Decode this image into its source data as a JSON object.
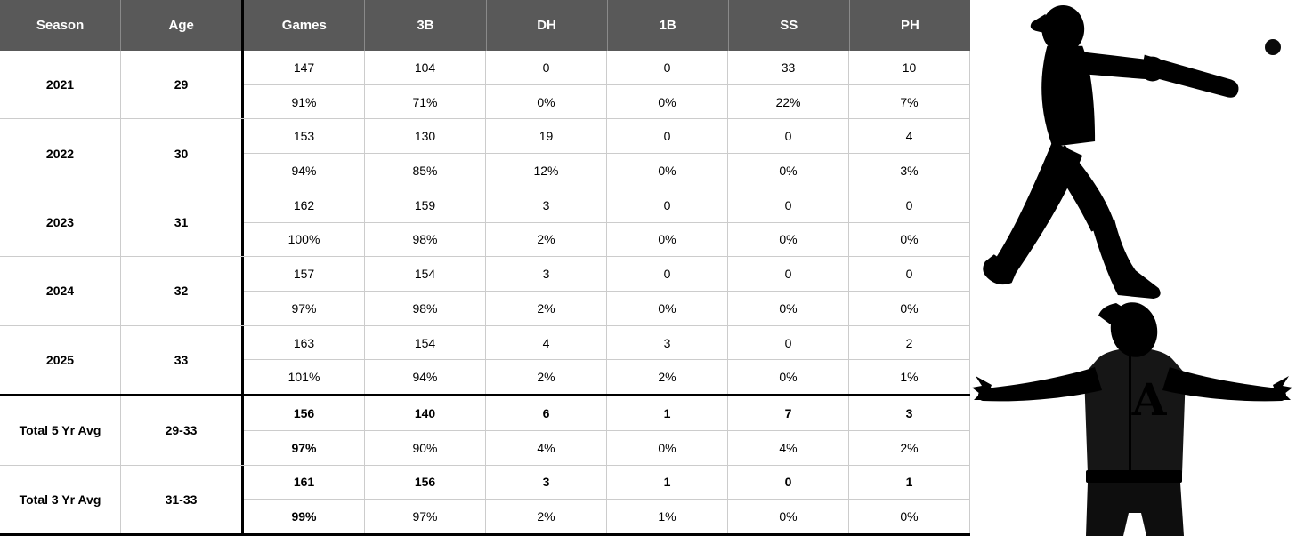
{
  "chart_data": {
    "type": "table",
    "columns": [
      "Season",
      "Age",
      "Games",
      "3B",
      "DH",
      "1B",
      "SS",
      "PH"
    ],
    "rows": [
      {
        "season": "2021",
        "age": "29",
        "counts": [
          "147",
          "104",
          "0",
          "0",
          "33",
          "10"
        ],
        "pcts": [
          "91%",
          "71%",
          "0%",
          "0%",
          "22%",
          "7%"
        ],
        "total": false
      },
      {
        "season": "2022",
        "age": "30",
        "counts": [
          "153",
          "130",
          "19",
          "0",
          "0",
          "4"
        ],
        "pcts": [
          "94%",
          "85%",
          "12%",
          "0%",
          "0%",
          "3%"
        ],
        "total": false
      },
      {
        "season": "2023",
        "age": "31",
        "counts": [
          "162",
          "159",
          "3",
          "0",
          "0",
          "0"
        ],
        "pcts": [
          "100%",
          "98%",
          "2%",
          "0%",
          "0%",
          "0%"
        ],
        "total": false
      },
      {
        "season": "2024",
        "age": "32",
        "counts": [
          "157",
          "154",
          "3",
          "0",
          "0",
          "0"
        ],
        "pcts": [
          "97%",
          "98%",
          "2%",
          "0%",
          "0%",
          "0%"
        ],
        "total": false
      },
      {
        "season": "2025",
        "age": "33",
        "counts": [
          "163",
          "154",
          "4",
          "3",
          "0",
          "2"
        ],
        "pcts": [
          "101%",
          "94%",
          "2%",
          "2%",
          "0%",
          "1%"
        ],
        "total": false
      },
      {
        "season": "Total 5 Yr Avg",
        "age": "29-33",
        "counts": [
          "156",
          "140",
          "6",
          "1",
          "7",
          "3"
        ],
        "pcts": [
          "97%",
          "90%",
          "4%",
          "0%",
          "4%",
          "2%"
        ],
        "total": true
      },
      {
        "season": "Total 3 Yr Avg",
        "age": "31-33",
        "counts": [
          "161",
          "156",
          "3",
          "1",
          "0",
          "1"
        ],
        "pcts": [
          "99%",
          "97%",
          "2%",
          "1%",
          "0%",
          "0%"
        ],
        "total": true
      }
    ],
    "layout": {
      "grid": "light-gray cell borders",
      "strong_dividers": "black line after Age column, above Total 5 Yr Avg row, bottom edge"
    }
  },
  "graphics": {
    "batter": "batter-swinging-silhouette",
    "celebration": "player-arms-outstretched-silhouette",
    "ball": "baseball-dot",
    "jersey_letter": "A"
  },
  "colors": {
    "header_bg": "#595959",
    "header_text": "#ffffff",
    "grid_line": "#cccccc",
    "strong_line": "#000000",
    "body_text": "#000000",
    "silhouette": "#000000",
    "jersey_fill": "#161616"
  }
}
